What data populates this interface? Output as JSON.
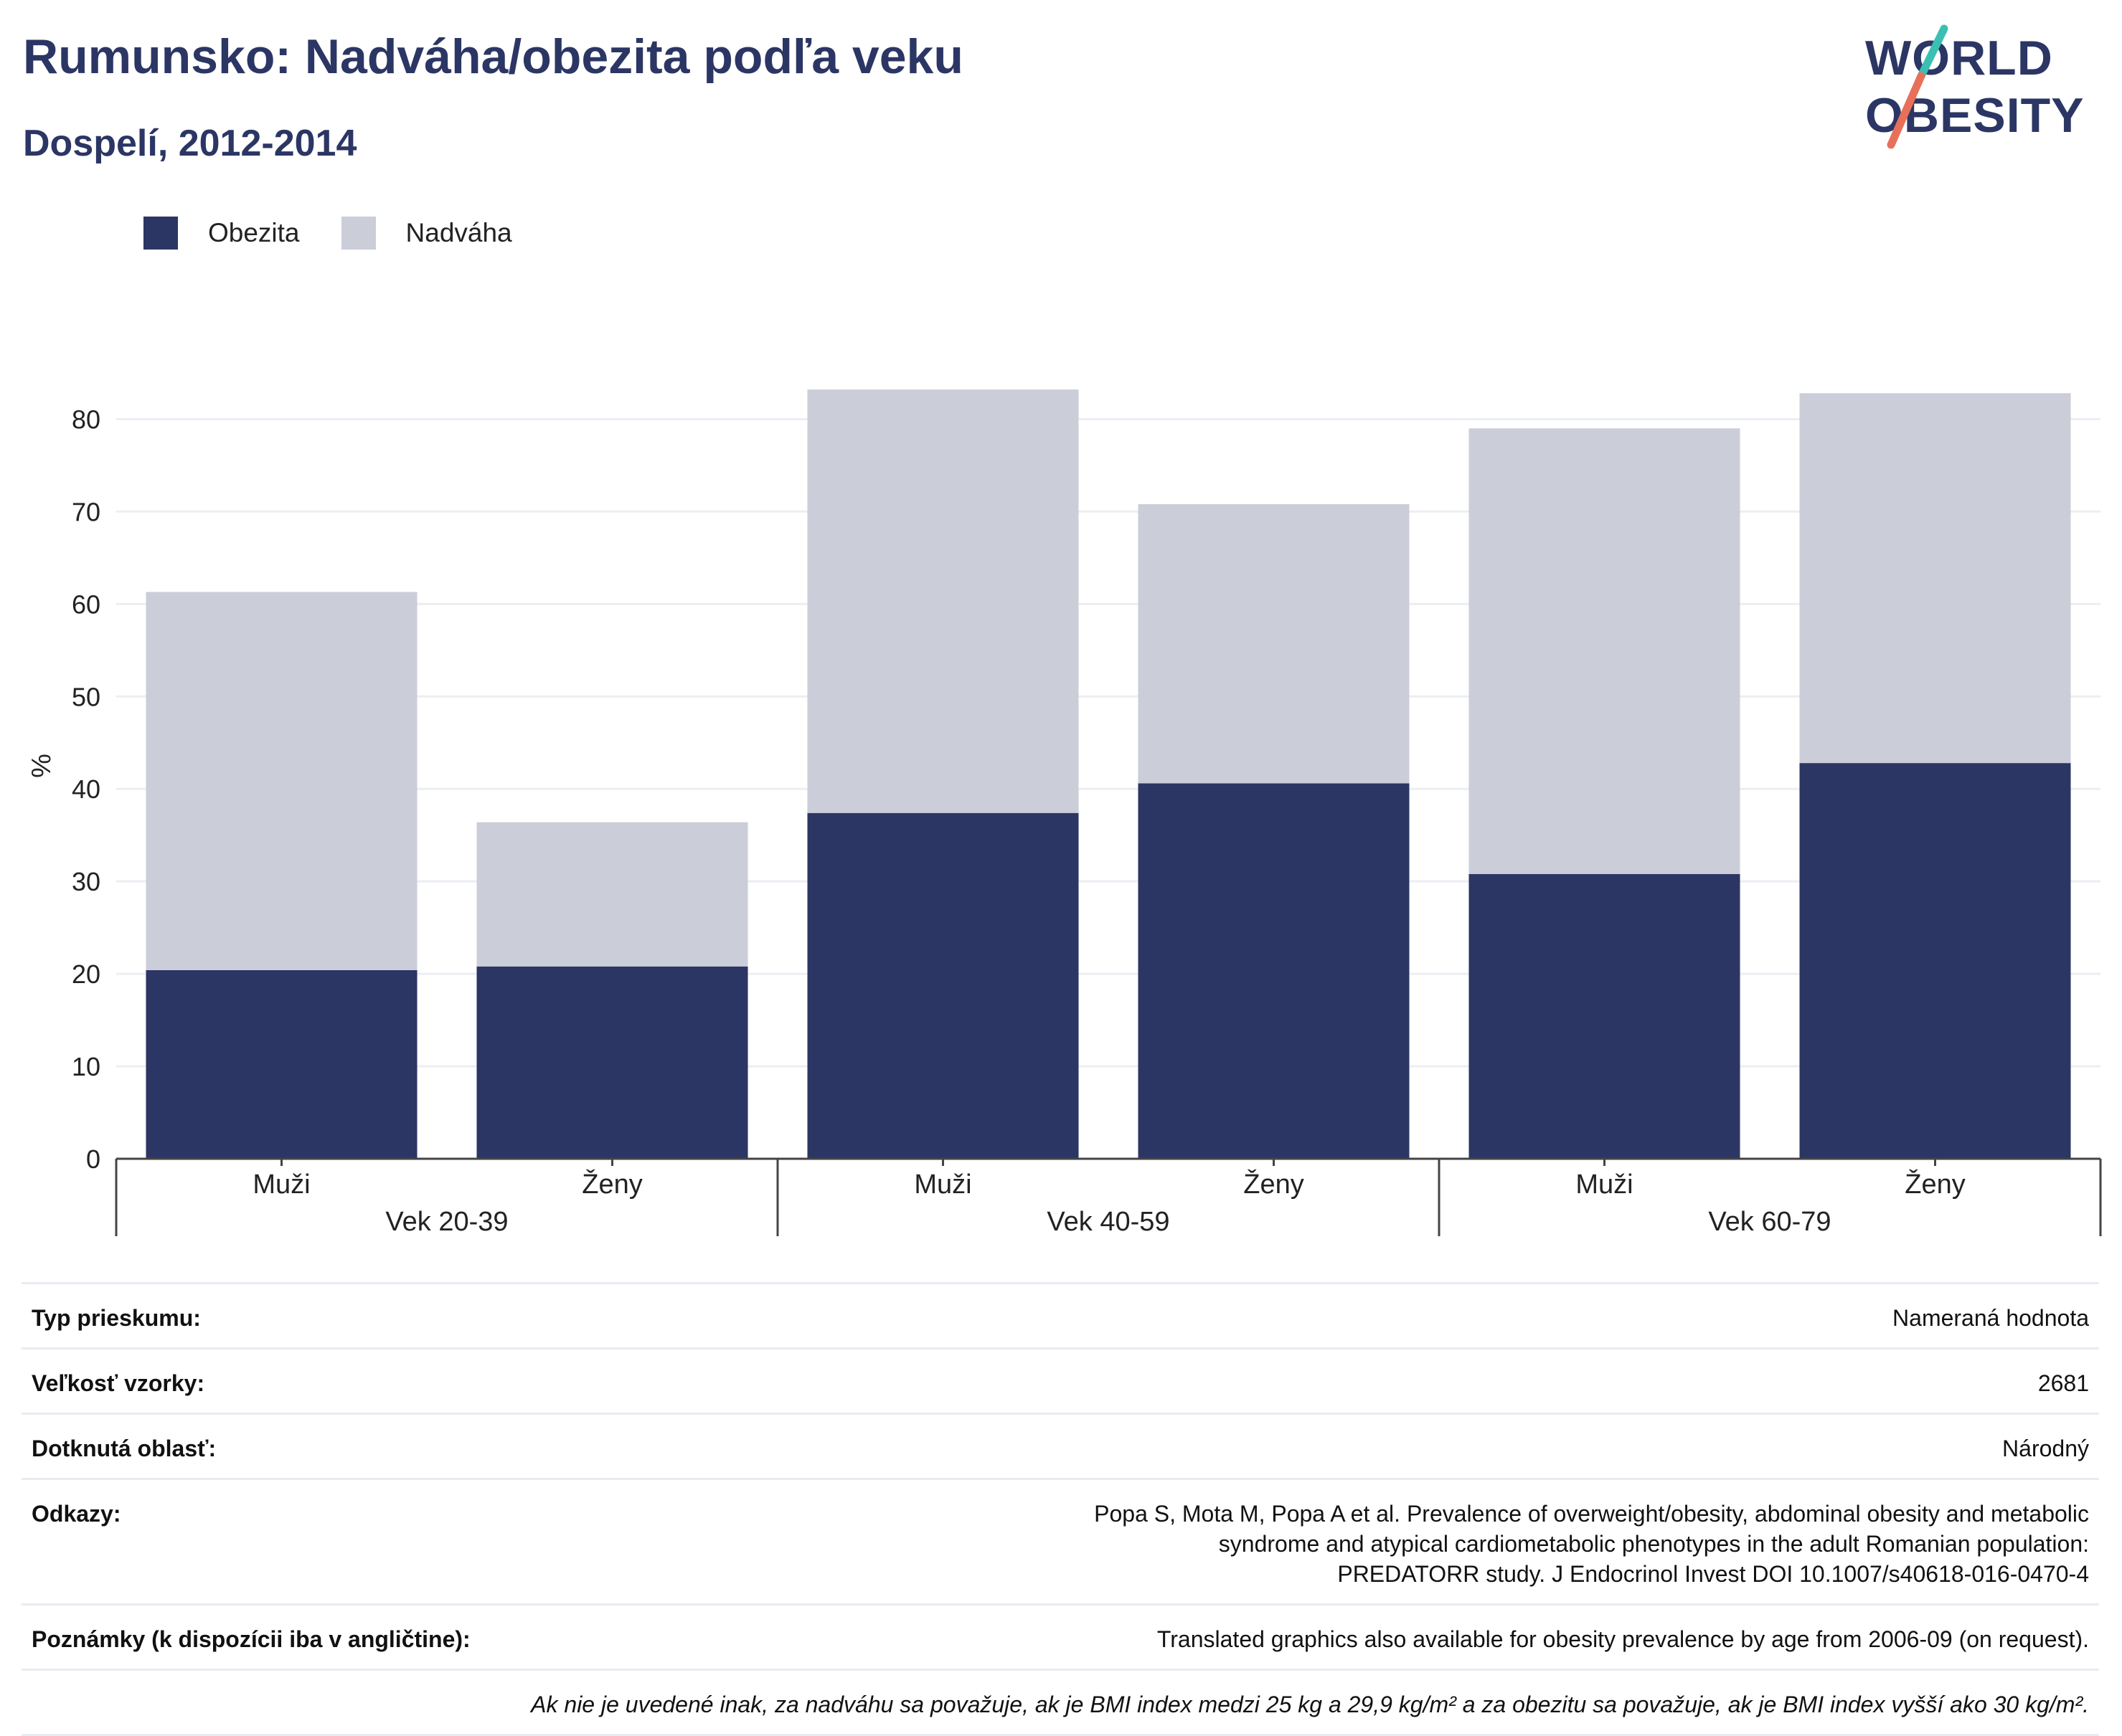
{
  "header": {
    "title": "Rumunsko: Nadváha/obezita podľa veku",
    "subtitle": "Dospelí, 2012-2014"
  },
  "logo": {
    "line1": "WORLD",
    "line2": "OBESITY",
    "colors": {
      "text": "#2b3664",
      "slash_top": "#3bbfb3",
      "slash_bottom": "#e8705a"
    }
  },
  "colors": {
    "obezita": "#2b3664",
    "nadvaha": "#cbcdd9",
    "grid": "#eceef3",
    "axis": "#444444"
  },
  "chart_data": {
    "type": "bar",
    "stacked": true,
    "ylabel": "%",
    "ylim": [
      0,
      85
    ],
    "yticks": [
      0,
      10,
      20,
      30,
      40,
      50,
      60,
      70,
      80
    ],
    "grid": true,
    "legend_placement": "top-left",
    "groups": [
      {
        "label": "Vek 20-39",
        "categories": [
          "Muži",
          "Ženy"
        ]
      },
      {
        "label": "Vek 40-59",
        "categories": [
          "Muži",
          "Ženy"
        ]
      },
      {
        "label": "Vek 60-79",
        "categories": [
          "Muži",
          "Ženy"
        ]
      }
    ],
    "series": [
      {
        "name": "Obezita",
        "values": [
          20.4,
          20.8,
          37.4,
          40.6,
          30.8,
          42.8
        ]
      },
      {
        "name": "Nadváha",
        "values": [
          40.9,
          15.6,
          45.8,
          30.2,
          48.2,
          40.0
        ]
      }
    ]
  },
  "info": {
    "rows": [
      {
        "key": "Typ prieskumu:",
        "value": "Nameraná hodnota"
      },
      {
        "key": "Veľkosť vzorky:",
        "value": "2681"
      },
      {
        "key": "Dotknutá oblasť:",
        "value": "Národný"
      },
      {
        "key": "Odkazy:",
        "value": "Popa S, Mota M, Popa A et al. Prevalence of overweight/obesity, abdominal obesity and metabolic syndrome and atypical cardiometabolic phenotypes in the adult Romanian population: PREDATORR study. J Endocrinol Invest DOI 10.1007/s40618-016-0470-4"
      },
      {
        "key": "Poznámky (k dispozícii iba v angličtine):",
        "value": "Translated graphics also available for obesity prevalence by age from 2006-09 (on request)."
      }
    ],
    "footnote": "Ak nie je uvedené inak, za nadváhu sa považuje, ak je BMI index medzi 25 kg a 29,9 kg/m² a za obezitu sa považuje, ak je BMI index vyšší ako 30 kg/m²."
  }
}
